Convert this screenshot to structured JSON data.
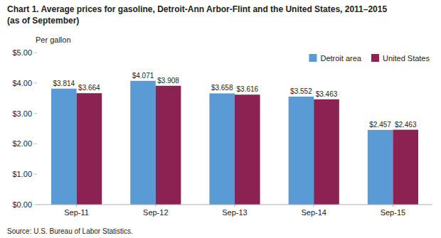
{
  "chart_data": {
    "type": "bar",
    "title": "Chart 1. Average prices for gasoline, Detroit-Ann Arbor-Flint and the United States, 2011–2015",
    "subtitle": "(as of September)",
    "ylabel": "Per gallon",
    "source": "Source: U.S. Bureau of Labor Statistics.",
    "categories": [
      "Sep-11",
      "Sep-12",
      "Sep-13",
      "Sep-14",
      "Sep-15"
    ],
    "series": [
      {
        "name": "Detroit area",
        "color": "#5B9BD5",
        "values": [
          3.814,
          4.071,
          3.658,
          3.552,
          2.457
        ],
        "value_labels": [
          "$3.814",
          "$4.071",
          "$3.658",
          "$3.552",
          "$2.457"
        ]
      },
      {
        "name": "United States",
        "color": "#8B2252",
        "values": [
          3.664,
          3.908,
          3.616,
          3.463,
          2.463
        ],
        "value_labels": [
          "$3.664",
          "$3.908",
          "$3.616",
          "$3.463",
          "$2.463"
        ]
      }
    ],
    "ylim": [
      0,
      5.0
    ],
    "yticks": [
      {
        "value": 0.0,
        "label": "$0.00"
      },
      {
        "value": 1.0,
        "label": "$1.00"
      },
      {
        "value": 2.0,
        "label": "$2.00"
      },
      {
        "value": 3.0,
        "label": "$3.00"
      },
      {
        "value": 4.0,
        "label": "$4.00"
      },
      {
        "value": 5.0,
        "label": "$5.00"
      }
    ],
    "data_labels": true,
    "legend": "upper right",
    "grid": false
  }
}
